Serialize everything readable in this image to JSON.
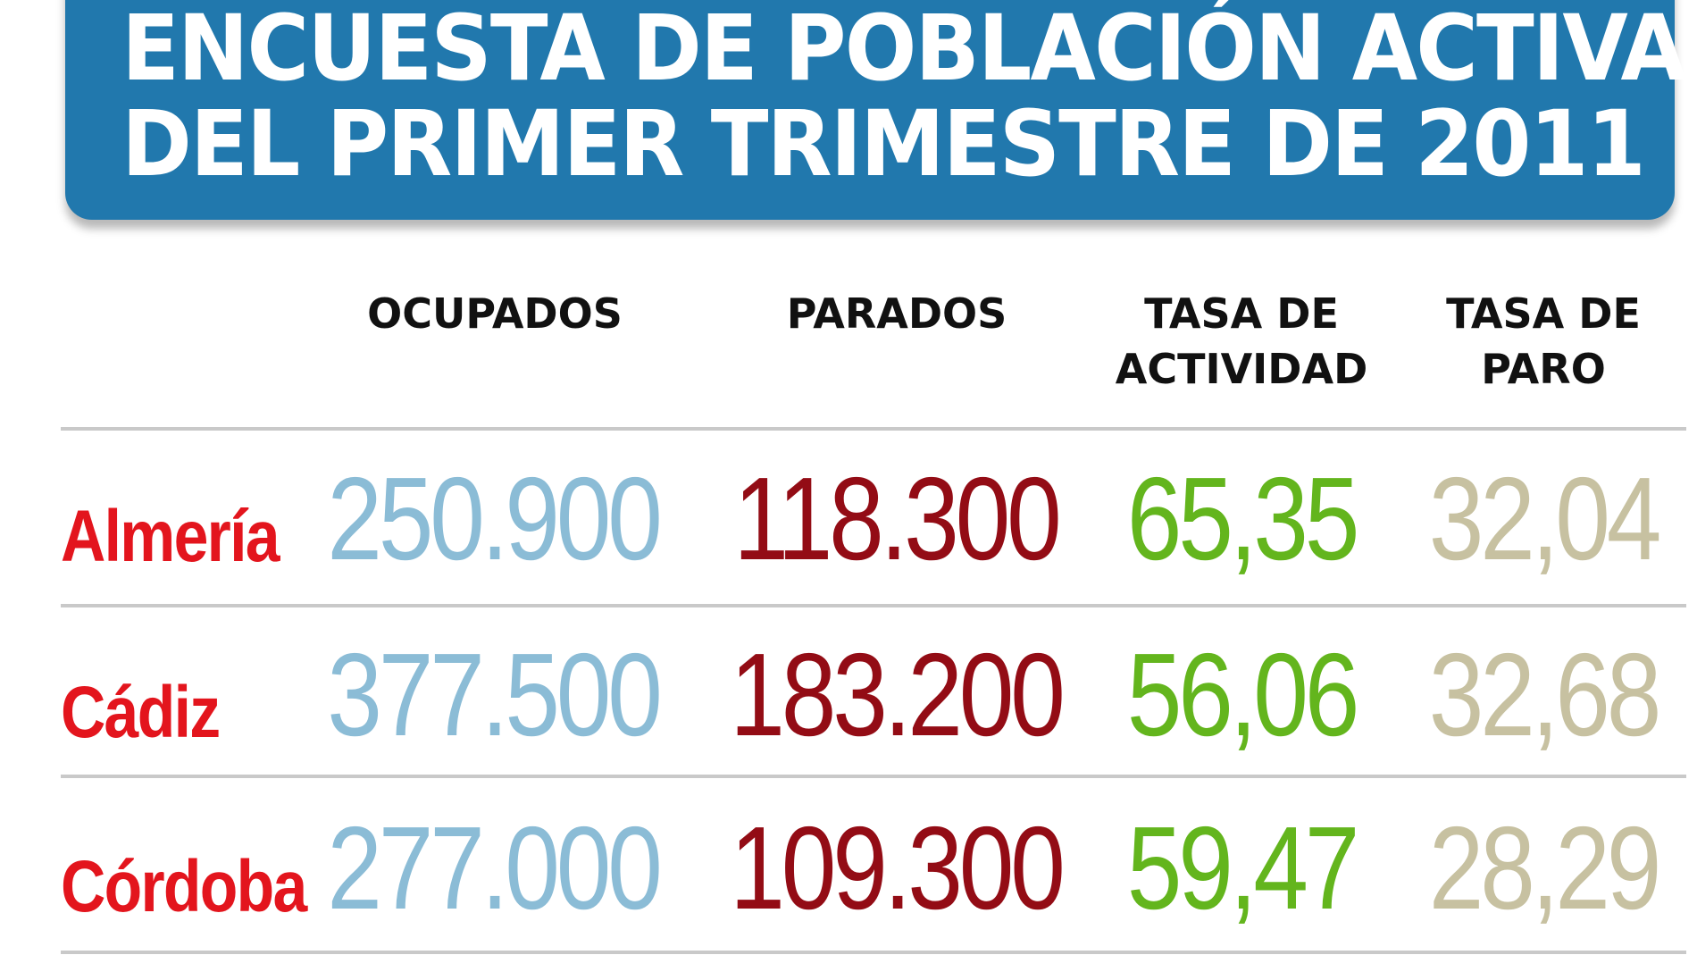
{
  "title_lines": [
    "ENCUESTA DE POBLACIÓN ACTIVA",
    "DEL PRIMER TRIMESTRE DE 2011"
  ],
  "headers": {
    "ocupados": "OCUPADOS",
    "parados": "PARADOS",
    "tasa_actividad": [
      "TASA DE",
      "ACTIVIDAD"
    ],
    "tasa_paro": [
      "TASA DE",
      "PARO"
    ]
  },
  "rows": [
    {
      "label": "Almería",
      "ocupados": "250.900",
      "parados": "118.300",
      "tasa_actividad": "65,35",
      "tasa_paro": "32,04"
    },
    {
      "label": "Cádiz",
      "ocupados": "377.500",
      "parados": "183.200",
      "tasa_actividad": "56,06",
      "tasa_paro": "32,68"
    },
    {
      "label": "Córdoba",
      "ocupados": "277.000",
      "parados": "109.300",
      "tasa_actividad": "59,47",
      "tasa_paro": "28,29"
    }
  ],
  "colors": {
    "banner": "#2178ad",
    "row_label": "#e3151d",
    "ocupados": "#8bbcd6",
    "parados": "#930c15",
    "tasa_actividad": "#63b51d",
    "tasa_paro": "#c7c1a1",
    "rule": "#c9c9c9"
  },
  "chart_data": {
    "type": "table",
    "title": "ENCUESTA DE POBLACIÓN ACTIVA DEL PRIMER TRIMESTRE DE 2011",
    "columns": [
      "",
      "OCUPADOS",
      "PARADOS",
      "TASA DE ACTIVIDAD",
      "TASA DE PARO"
    ],
    "rows": [
      [
        "Almería",
        250900,
        118300,
        65.35,
        32.04
      ],
      [
        "Cádiz",
        377500,
        183200,
        56.06,
        32.68
      ],
      [
        "Córdoba",
        277000,
        109300,
        59.47,
        28.29
      ]
    ]
  }
}
